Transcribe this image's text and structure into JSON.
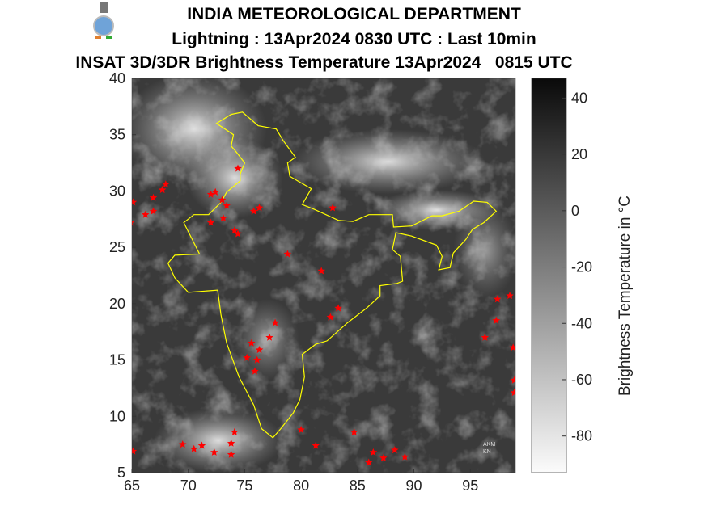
{
  "header": {
    "title": "INDIA METEOROLOGICAL DEPARTMENT",
    "subtitle": "Lightning : 13Apr2024 0830 UTC : Last 10min",
    "product": "INSAT 3D/3DR Brightness Temperature 13Apr2024   0815 UTC",
    "logo": "IMD emblem"
  },
  "map": {
    "lon_range": [
      65,
      99
    ],
    "lat_range": [
      5,
      40
    ],
    "x_ticks": [
      "65",
      "70",
      "75",
      "80",
      "85",
      "90",
      "95"
    ],
    "y_ticks": [
      "5",
      "10",
      "15",
      "20",
      "25",
      "30",
      "35",
      "40"
    ],
    "boundary_color": "#ffff00",
    "lightning_color": "#ff0000",
    "labels": [
      "AKM",
      "KN"
    ],
    "lightning": [
      [
        65.1,
        29.0
      ],
      [
        64.9,
        27.2
      ],
      [
        66.9,
        29.4
      ],
      [
        67.7,
        30.1
      ],
      [
        68.0,
        30.6
      ],
      [
        66.2,
        27.9
      ],
      [
        66.9,
        28.2
      ],
      [
        72.0,
        29.7
      ],
      [
        72.4,
        29.9
      ],
      [
        73.4,
        28.7
      ],
      [
        73.0,
        29.2
      ],
      [
        73.1,
        27.6
      ],
      [
        74.1,
        26.5
      ],
      [
        74.4,
        26.2
      ],
      [
        72.0,
        27.2
      ],
      [
        76.3,
        28.5
      ],
      [
        75.8,
        28.2
      ],
      [
        74.4,
        32.0
      ],
      [
        82.8,
        28.5
      ],
      [
        78.8,
        24.4
      ],
      [
        81.8,
        22.9
      ],
      [
        83.3,
        19.6
      ],
      [
        82.6,
        18.8
      ],
      [
        77.7,
        18.3
      ],
      [
        77.2,
        17.0
      ],
      [
        75.6,
        16.5
      ],
      [
        76.3,
        15.9
      ],
      [
        76.1,
        15.0
      ],
      [
        75.9,
        14.0
      ],
      [
        75.2,
        15.2
      ],
      [
        80.0,
        8.8
      ],
      [
        81.3,
        7.4
      ],
      [
        84.7,
        8.6
      ],
      [
        86.4,
        6.8
      ],
      [
        87.3,
        6.3
      ],
      [
        88.3,
        7.0
      ],
      [
        89.2,
        6.4
      ],
      [
        86.0,
        5.9
      ],
      [
        65.1,
        6.9
      ],
      [
        69.5,
        7.5
      ],
      [
        70.5,
        7.1
      ],
      [
        71.2,
        7.4
      ],
      [
        72.3,
        6.8
      ],
      [
        73.8,
        7.6
      ],
      [
        74.1,
        8.6
      ],
      [
        73.8,
        6.6
      ],
      [
        96.3,
        17.0
      ],
      [
        97.3,
        18.5
      ],
      [
        97.4,
        20.4
      ],
      [
        98.5,
        20.7
      ],
      [
        98.8,
        16.1
      ],
      [
        98.9,
        13.2
      ],
      [
        98.9,
        12.1
      ]
    ]
  },
  "colorbar": {
    "label": "Brightness Temperature in  °C",
    "range": [
      -93,
      47
    ],
    "ticks": [
      "40",
      "20",
      "0",
      "-20",
      "-40",
      "-60",
      "-80"
    ]
  }
}
